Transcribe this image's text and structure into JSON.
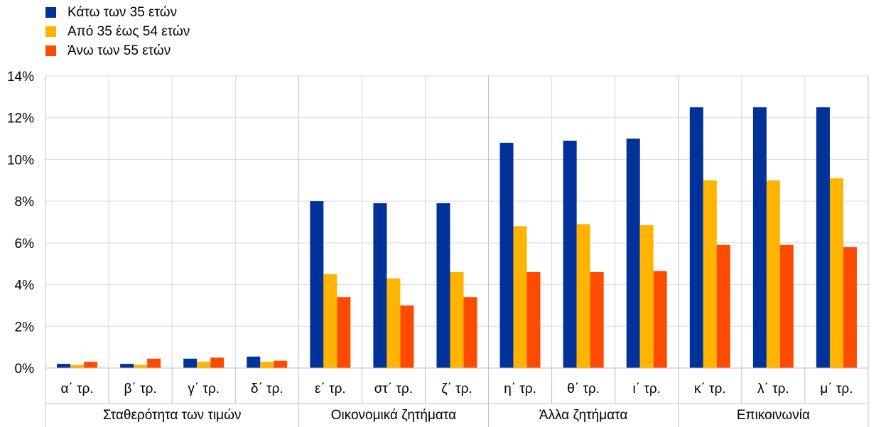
{
  "chart_data": {
    "type": "bar",
    "categories": [
      "α΄ τρ.",
      "β΄ τρ.",
      "γ΄ τρ.",
      "δ΄ τρ.",
      "ε΄ τρ.",
      "στ΄ τρ.",
      "ζ΄ τρ.",
      "η΄ τρ.",
      "θ΄ τρ.",
      "ι΄ τρ.",
      "κ΄ τρ.",
      "λ΄ τρ.",
      "μ΄ τρ."
    ],
    "groups": [
      {
        "label": "Σταθερότητα των τιμών",
        "start": 0,
        "count": 4
      },
      {
        "label": "Οικονομικά ζητήματα",
        "start": 4,
        "count": 3
      },
      {
        "label": "Άλλα ζητήματα",
        "start": 7,
        "count": 3
      },
      {
        "label": "Επικοινωνία",
        "start": 10,
        "count": 3
      }
    ],
    "series": [
      {
        "name": "Κάτω των 35 ετών",
        "color": "#003299",
        "values": [
          0.2,
          0.2,
          0.45,
          0.55,
          8.0,
          7.9,
          7.9,
          10.8,
          10.9,
          11.0,
          12.5,
          12.5,
          12.5
        ]
      },
      {
        "name": "Από 35 έως 54 ετών",
        "color": "#FFB400",
        "values": [
          0.15,
          0.15,
          0.3,
          0.3,
          4.5,
          4.3,
          4.6,
          6.8,
          6.9,
          6.85,
          9.0,
          9.0,
          9.1
        ]
      },
      {
        "name": "Άνω των 55 ετών",
        "color": "#FF4B00",
        "values": [
          0.3,
          0.45,
          0.5,
          0.35,
          3.4,
          3.0,
          3.4,
          4.6,
          4.6,
          4.65,
          5.9,
          5.9,
          5.8
        ]
      }
    ],
    "y_ticks": [
      "0%",
      "2%",
      "4%",
      "6%",
      "8%",
      "10%",
      "12%",
      "14%"
    ],
    "ylim": [
      0,
      14
    ],
    "grid": true,
    "legend": "top-left"
  }
}
